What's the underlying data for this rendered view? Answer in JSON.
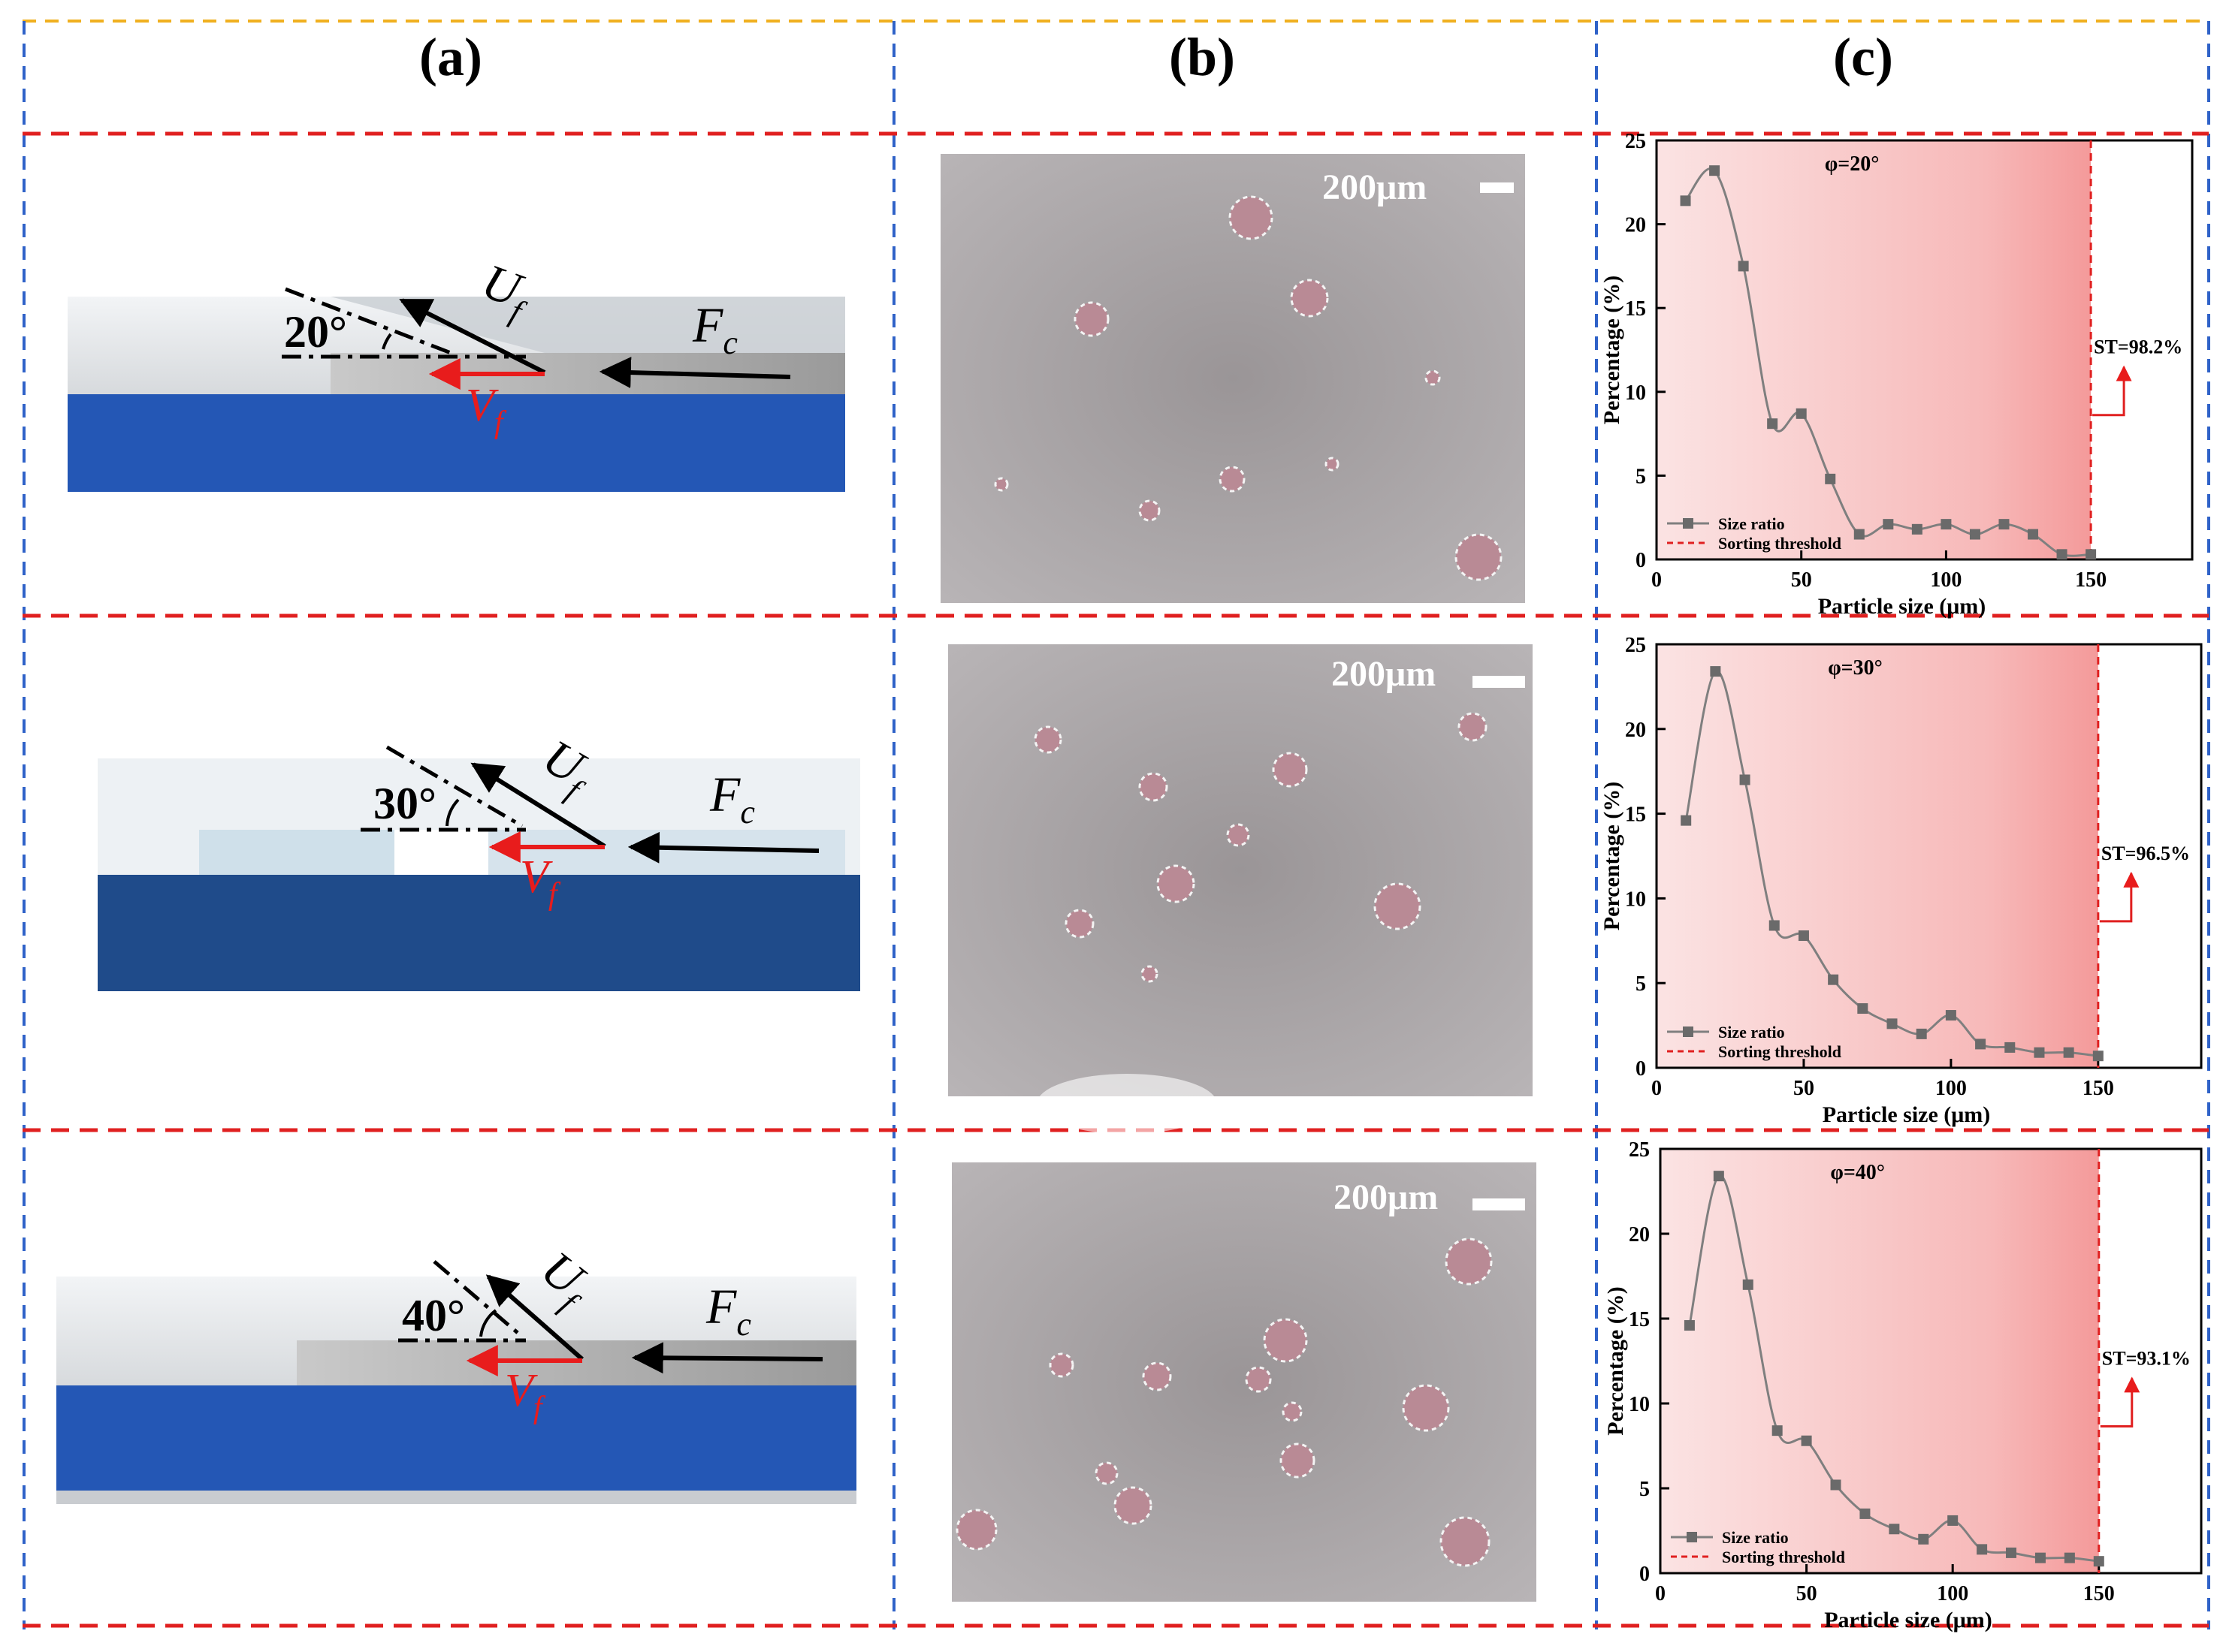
{
  "headers": {
    "a": "(a)",
    "b": "(b)",
    "c": "(c)"
  },
  "colors": {
    "red_dash": "#e02020",
    "blue_dash": "#2f62c8",
    "yellow_dash": "#f0b020",
    "channel_blue": "#2457b5",
    "curve": "#7f7f7f",
    "marker": "#6a6a6a",
    "shade": "#f08080"
  },
  "schematics": [
    {
      "angle": "20°",
      "U": "U",
      "U_sub": "f",
      "V": "V",
      "V_sub": "f",
      "F": "F",
      "F_sub": "c"
    },
    {
      "angle": "30°",
      "U": "U",
      "U_sub": "f",
      "V": "V",
      "V_sub": "f",
      "F": "F",
      "F_sub": "c"
    },
    {
      "angle": "40°",
      "U": "U",
      "U_sub": "f",
      "V": "V",
      "V_sub": "f",
      "F": "F",
      "F_sub": "c"
    }
  ],
  "micrographs": [
    {
      "scale_label": "200μm"
    },
    {
      "scale_label": "200μm"
    },
    {
      "scale_label": "200μm"
    }
  ],
  "chart_data": [
    {
      "type": "line",
      "title": "φ=20°",
      "xlabel": "Particle size (μm)",
      "ylabel": "Percentage (%)",
      "xlim": [
        0,
        185
      ],
      "ylim": [
        0,
        25
      ],
      "x_ticks": [
        0,
        50,
        100,
        150
      ],
      "y_ticks": [
        0,
        5,
        10,
        15,
        20,
        25
      ],
      "threshold_x": 150,
      "annotation": "ST=98.2%",
      "legend": [
        "Size ratio",
        "Sorting threshold"
      ],
      "legend_position": "bottom-left",
      "series": [
        {
          "name": "Size ratio",
          "x": [
            10,
            20,
            30,
            40,
            50,
            60,
            70,
            80,
            90,
            100,
            110,
            120,
            130,
            140,
            150
          ],
          "y": [
            21.4,
            23.2,
            17.5,
            8.1,
            8.7,
            4.8,
            1.5,
            2.1,
            1.8,
            2.1,
            1.5,
            2.1,
            1.5,
            0.3,
            0.3
          ]
        }
      ]
    },
    {
      "type": "line",
      "title": "φ=30°",
      "xlabel": "Particle size (μm)",
      "ylabel": "Percentage (%)",
      "xlim": [
        0,
        185
      ],
      "ylim": [
        0,
        25
      ],
      "x_ticks": [
        0,
        50,
        100,
        150
      ],
      "y_ticks": [
        0,
        5,
        10,
        15,
        20,
        25
      ],
      "threshold_x": 150,
      "annotation": "ST=96.5%",
      "legend": [
        "Size ratio",
        "Sorting threshold"
      ],
      "legend_position": "bottom-left",
      "series": [
        {
          "name": "Size ratio",
          "x": [
            10,
            20,
            30,
            40,
            50,
            60,
            70,
            80,
            90,
            100,
            110,
            120,
            130,
            140,
            150
          ],
          "y": [
            14.6,
            23.4,
            17.0,
            8.4,
            7.8,
            5.2,
            3.5,
            2.6,
            2.0,
            3.1,
            1.4,
            1.2,
            0.9,
            0.9,
            0.7
          ]
        }
      ]
    },
    {
      "type": "line",
      "title": "φ=40°",
      "xlabel": "Particle size (μm)",
      "ylabel": "Percentage (%)",
      "xlim": [
        0,
        185
      ],
      "ylim": [
        0,
        25
      ],
      "x_ticks": [
        0,
        50,
        100,
        150
      ],
      "y_ticks": [
        0,
        5,
        10,
        15,
        20,
        25
      ],
      "threshold_x": 150,
      "annotation": "ST=93.1%",
      "legend": [
        "Size ratio",
        "Sorting threshold"
      ],
      "legend_position": "bottom-left",
      "series": [
        {
          "name": "Size ratio",
          "x": [
            10,
            20,
            30,
            40,
            50,
            60,
            70,
            80,
            90,
            100,
            110,
            120,
            130,
            140,
            150
          ],
          "y": [
            14.6,
            23.4,
            17.0,
            8.4,
            7.8,
            5.2,
            3.5,
            2.6,
            2.0,
            3.1,
            1.4,
            1.2,
            0.9,
            0.9,
            0.7
          ]
        }
      ]
    }
  ]
}
